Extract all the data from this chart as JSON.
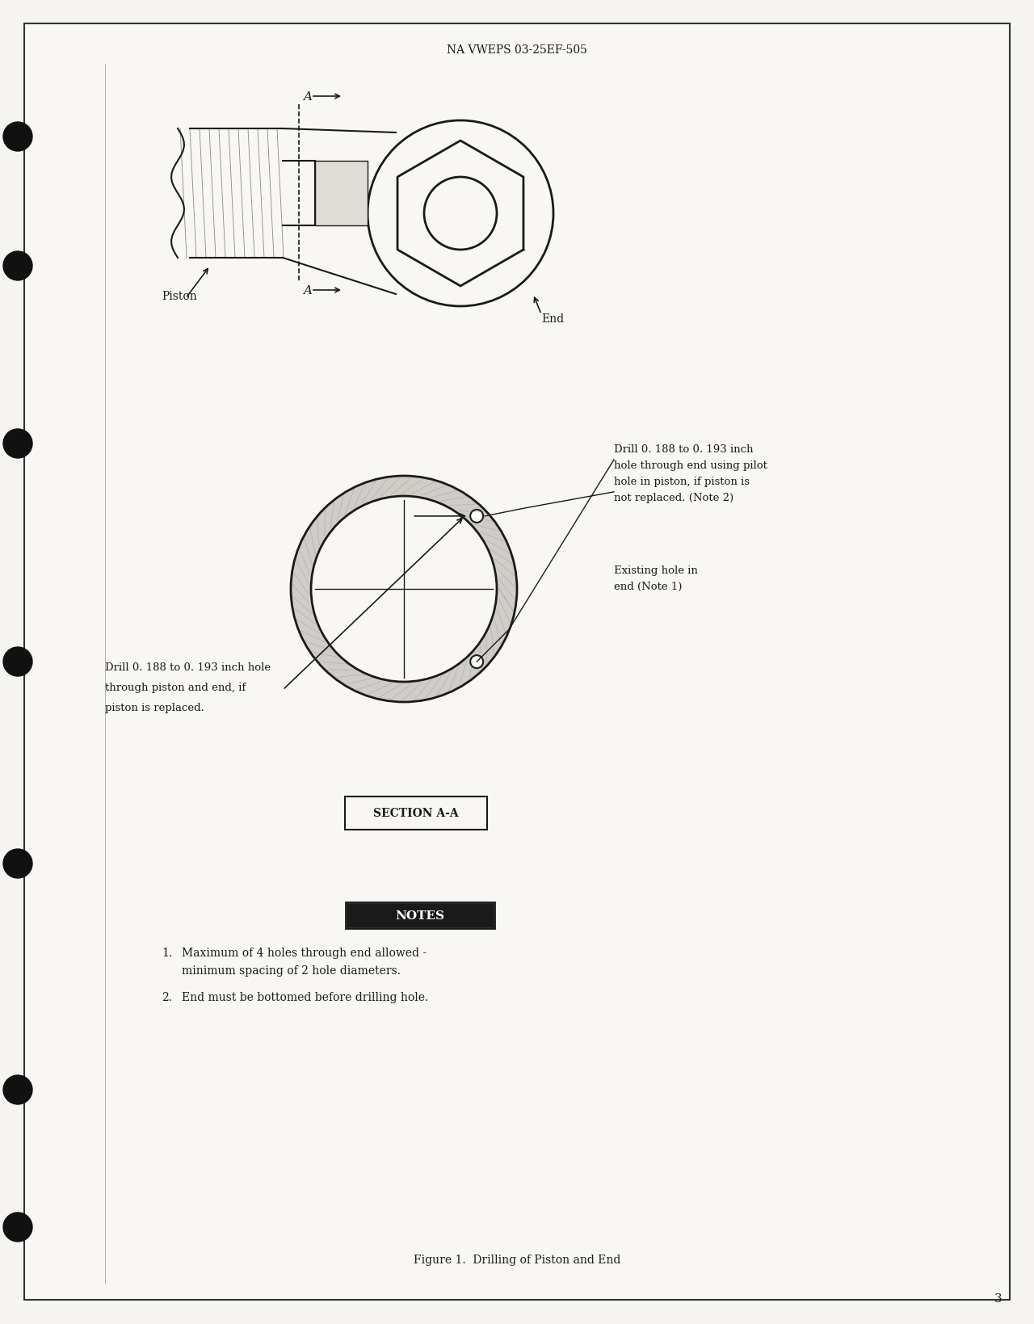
{
  "page_header": "NA VWEPS 03-25EF-505",
  "page_number": "3",
  "figure_caption": "Figure 1.  Drilling of Piston and End",
  "notes_title": "NOTES",
  "notes": [
    "Maximum of 4 holes through end allowed - minimum spacing of 2 hole diameters.",
    "End must be bottomed before drilling hole."
  ],
  "label_piston": "Piston",
  "label_end": "End",
  "label_section": "SECTION A-A",
  "label_A_top": "A",
  "label_A_bottom": "A",
  "label_drill_left_top": "Drill 0. 188 to 0. 193 inch",
  "label_drill_left_top2": "hole through end using pilot",
  "label_drill_left_top3": "hole in piston, if piston is",
  "label_drill_left_top4": "not replaced. (Note 2)",
  "label_drill_left": "Drill 0. 188 to 0. 193 inch hole",
  "label_drill_left2": "through piston and end, if",
  "label_drill_left3": "piston is replaced.",
  "label_existing": "Existing hole in",
  "label_existing2": "end (Note 1)",
  "bg_color": "#f5f4f0",
  "paper_color": "#f8f7f3",
  "ink_color": "#1a1a1a",
  "border_color": "#333333"
}
